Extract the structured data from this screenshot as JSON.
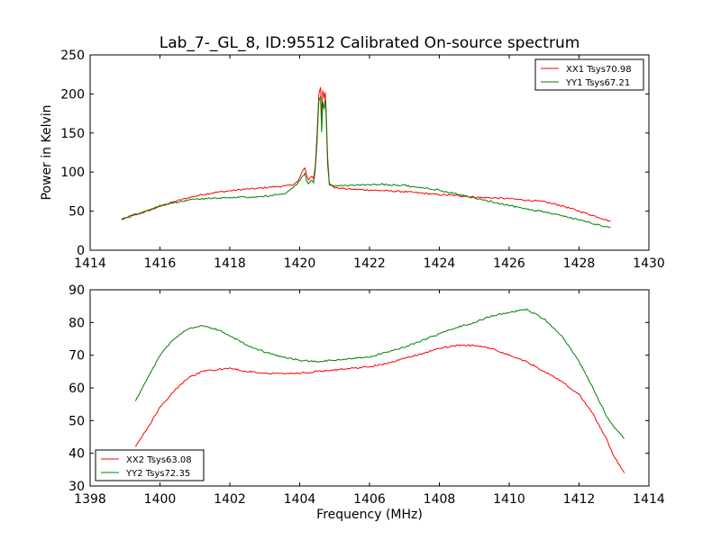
{
  "colors": {
    "red": "#ff0000",
    "green": "#008000"
  },
  "chart_data": [
    {
      "type": "line",
      "title": "Lab_7-_GL_8, ID:95512 Calibrated On-source spectrum",
      "xlabel": "",
      "ylabel": "Power in Kelvin",
      "xlim": [
        1414,
        1430
      ],
      "ylim": [
        0,
        250
      ],
      "xticks": [
        1414,
        1416,
        1418,
        1420,
        1422,
        1424,
        1426,
        1428,
        1430
      ],
      "yticks": [
        0,
        50,
        100,
        150,
        200,
        250
      ],
      "legend_position": "top-right",
      "grid": false,
      "series": [
        {
          "name": "XX1 Tsys70.98",
          "color": "#ff0000",
          "points": [
            [
              1414.9,
              39
            ],
            [
              1415.3,
              45
            ],
            [
              1415.7,
              51
            ],
            [
              1416.0,
              56
            ],
            [
              1416.4,
              62
            ],
            [
              1416.8,
              67
            ],
            [
              1417.2,
              71
            ],
            [
              1417.6,
              74
            ],
            [
              1418.0,
              76
            ],
            [
              1418.4,
              78
            ],
            [
              1418.8,
              79
            ],
            [
              1419.2,
              81
            ],
            [
              1419.6,
              82
            ],
            [
              1419.8,
              84
            ],
            [
              1419.95,
              88
            ],
            [
              1420.05,
              98
            ],
            [
              1420.15,
              106
            ],
            [
              1420.2,
              96
            ],
            [
              1420.25,
              90
            ],
            [
              1420.35,
              95
            ],
            [
              1420.4,
              92
            ],
            [
              1420.45,
              110
            ],
            [
              1420.5,
              150
            ],
            [
              1420.55,
              200
            ],
            [
              1420.6,
              208
            ],
            [
              1420.63,
              170
            ],
            [
              1420.66,
              205
            ],
            [
              1420.7,
              195
            ],
            [
              1420.73,
              202
            ],
            [
              1420.76,
              180
            ],
            [
              1420.8,
              120
            ],
            [
              1420.85,
              85
            ],
            [
              1421.0,
              80
            ],
            [
              1421.5,
              78
            ],
            [
              1422.0,
              77
            ],
            [
              1422.5,
              76
            ],
            [
              1423.0,
              75
            ],
            [
              1423.5,
              73
            ],
            [
              1424.0,
              71
            ],
            [
              1424.5,
              70
            ],
            [
              1425.0,
              68
            ],
            [
              1425.5,
              67
            ],
            [
              1426.0,
              66
            ],
            [
              1426.5,
              64
            ],
            [
              1427.0,
              62
            ],
            [
              1427.5,
              57
            ],
            [
              1428.0,
              50
            ],
            [
              1428.5,
              43
            ],
            [
              1428.9,
              37
            ]
          ]
        },
        {
          "name": "YY1 Tsys67.21",
          "color": "#008000",
          "points": [
            [
              1414.9,
              40
            ],
            [
              1415.3,
              46
            ],
            [
              1415.7,
              52
            ],
            [
              1416.0,
              57
            ],
            [
              1416.4,
              61
            ],
            [
              1416.8,
              64
            ],
            [
              1417.2,
              66
            ],
            [
              1417.6,
              67
            ],
            [
              1418.0,
              67
            ],
            [
              1418.4,
              68
            ],
            [
              1418.8,
              68
            ],
            [
              1419.2,
              70
            ],
            [
              1419.6,
              73
            ],
            [
              1419.8,
              80
            ],
            [
              1419.95,
              86
            ],
            [
              1420.05,
              93
            ],
            [
              1420.15,
              98
            ],
            [
              1420.2,
              88
            ],
            [
              1420.25,
              84
            ],
            [
              1420.35,
              90
            ],
            [
              1420.4,
              87
            ],
            [
              1420.45,
              105
            ],
            [
              1420.5,
              140
            ],
            [
              1420.55,
              192
            ],
            [
              1420.6,
              198
            ],
            [
              1420.63,
              150
            ],
            [
              1420.66,
              190
            ],
            [
              1420.7,
              180
            ],
            [
              1420.73,
              195
            ],
            [
              1420.76,
              170
            ],
            [
              1420.8,
              110
            ],
            [
              1420.85,
              83
            ],
            [
              1421.0,
              82
            ],
            [
              1421.5,
              83
            ],
            [
              1422.0,
              84
            ],
            [
              1422.5,
              84
            ],
            [
              1423.0,
              83
            ],
            [
              1423.5,
              80
            ],
            [
              1424.0,
              77
            ],
            [
              1424.5,
              72
            ],
            [
              1425.0,
              67
            ],
            [
              1425.5,
              62
            ],
            [
              1426.0,
              57
            ],
            [
              1426.5,
              53
            ],
            [
              1427.0,
              49
            ],
            [
              1427.5,
              44
            ],
            [
              1428.0,
              39
            ],
            [
              1428.5,
              33
            ],
            [
              1428.9,
              29
            ]
          ]
        }
      ]
    },
    {
      "type": "line",
      "title": "",
      "xlabel": "Frequency (MHz)",
      "ylabel": "",
      "xlim": [
        1398,
        1414
      ],
      "ylim": [
        30,
        90
      ],
      "xticks": [
        1398,
        1400,
        1402,
        1404,
        1406,
        1408,
        1410,
        1412,
        1414
      ],
      "yticks": [
        30,
        40,
        50,
        60,
        70,
        80,
        90
      ],
      "legend_position": "bottom-left",
      "grid": false,
      "series": [
        {
          "name": "XX2 Tsys63.08",
          "color": "#ff0000",
          "points": [
            [
              1399.3,
              42
            ],
            [
              1399.6,
              47
            ],
            [
              1400.0,
              54
            ],
            [
              1400.4,
              59
            ],
            [
              1400.8,
              63
            ],
            [
              1401.2,
              65
            ],
            [
              1401.6,
              65.5
            ],
            [
              1402.0,
              66
            ],
            [
              1402.5,
              65
            ],
            [
              1403.0,
              64.5
            ],
            [
              1403.5,
              64.5
            ],
            [
              1404.0,
              64.5
            ],
            [
              1404.5,
              65
            ],
            [
              1405.0,
              65.5
            ],
            [
              1405.5,
              66
            ],
            [
              1406.0,
              66.5
            ],
            [
              1406.5,
              67.5
            ],
            [
              1407.0,
              69
            ],
            [
              1407.5,
              70.5
            ],
            [
              1408.0,
              72
            ],
            [
              1408.5,
              73
            ],
            [
              1409.0,
              73
            ],
            [
              1409.5,
              72
            ],
            [
              1410.0,
              70
            ],
            [
              1410.5,
              68
            ],
            [
              1411.0,
              65
            ],
            [
              1411.5,
              62
            ],
            [
              1412.0,
              58
            ],
            [
              1412.4,
              52
            ],
            [
              1412.8,
              44
            ],
            [
              1413.0,
              39
            ],
            [
              1413.3,
              34
            ]
          ]
        },
        {
          "name": "YY2 Tsys72.35",
          "color": "#008000",
          "points": [
            [
              1399.3,
              56
            ],
            [
              1399.6,
              62
            ],
            [
              1400.0,
              70
            ],
            [
              1400.4,
              75
            ],
            [
              1400.8,
              78
            ],
            [
              1401.2,
              79
            ],
            [
              1401.6,
              78
            ],
            [
              1402.0,
              76
            ],
            [
              1402.5,
              73
            ],
            [
              1403.0,
              71
            ],
            [
              1403.5,
              69.5
            ],
            [
              1404.0,
              68.5
            ],
            [
              1404.5,
              68
            ],
            [
              1405.0,
              68.5
            ],
            [
              1405.5,
              69
            ],
            [
              1406.0,
              69.5
            ],
            [
              1406.5,
              71
            ],
            [
              1407.0,
              72.5
            ],
            [
              1407.5,
              74.5
            ],
            [
              1408.0,
              76.5
            ],
            [
              1408.5,
              78.5
            ],
            [
              1409.0,
              80
            ],
            [
              1409.5,
              82
            ],
            [
              1410.0,
              83
            ],
            [
              1410.5,
              84
            ],
            [
              1411.0,
              81
            ],
            [
              1411.5,
              76
            ],
            [
              1412.0,
              68
            ],
            [
              1412.4,
              60
            ],
            [
              1412.8,
              51
            ],
            [
              1413.0,
              48
            ],
            [
              1413.3,
              44.5
            ]
          ]
        }
      ]
    }
  ]
}
